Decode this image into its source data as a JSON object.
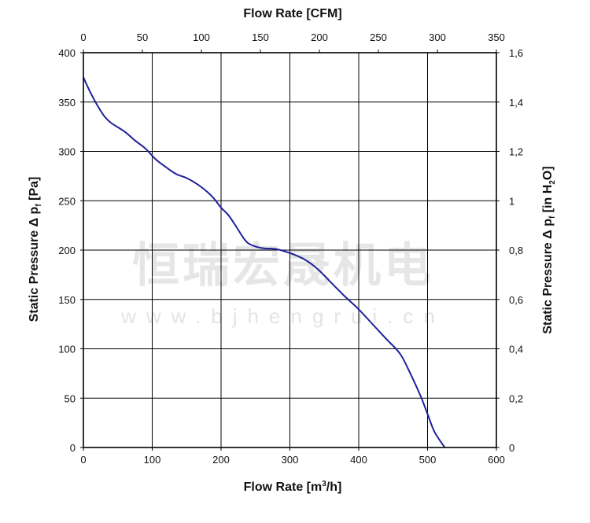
{
  "chart_data": {
    "type": "line",
    "title": "",
    "x_bottom": {
      "label_main": "Flow Rate [m",
      "label_sup": "3",
      "label_end": "/h]",
      "range": [
        0,
        600
      ],
      "ticks": [
        "0",
        "100",
        "200",
        "300",
        "400",
        "500",
        "600"
      ]
    },
    "x_top": {
      "label": "Flow Rate [CFM]",
      "range": [
        0,
        350
      ],
      "ticks": [
        "0",
        "50",
        "100",
        "150",
        "200",
        "250",
        "300",
        "350"
      ]
    },
    "y_left": {
      "label_main": "Static Pressure Δ p",
      "label_sub": "f",
      "label_end": " [Pa]",
      "range": [
        0,
        400
      ],
      "ticks": [
        "0",
        "50",
        "100",
        "150",
        "200",
        "250",
        "300",
        "350",
        "400"
      ]
    },
    "y_right": {
      "label_main": "Static Pressure Δ p",
      "label_sub": "f",
      "label_mid": " [in H",
      "label_sub2": "2",
      "label_end": "O]",
      "range": [
        0,
        1.6
      ],
      "ticks": [
        "0",
        "0,2",
        "0,4",
        "0,6",
        "0,8",
        "1",
        "1,2",
        "1,4",
        "1,6"
      ]
    },
    "grid": true,
    "legend": "none",
    "series": [
      {
        "color": "#1f1f9c",
        "x": [
          0,
          10,
          20,
          30,
          40,
          60,
          75,
          90,
          105,
          120,
          135,
          150,
          165,
          180,
          190,
          200,
          210,
          220,
          235,
          245,
          260,
          280,
          300,
          320,
          340,
          360,
          380,
          400,
          420,
          440,
          460,
          475,
          490,
          500,
          510,
          525
        ],
        "y": [
          375,
          360,
          347,
          336,
          329,
          320,
          311,
          303,
          292,
          284,
          277,
          273,
          267,
          259,
          252,
          243,
          236,
          226,
          210,
          205,
          202,
          201,
          197,
          191,
          181,
          167,
          153,
          140,
          125,
          110,
          95,
          75,
          52,
          34,
          16,
          0
        ]
      }
    ]
  },
  "watermark": {
    "chinese": "恒瑞宏晟机电",
    "url": "www.bjhengrui.cn"
  }
}
